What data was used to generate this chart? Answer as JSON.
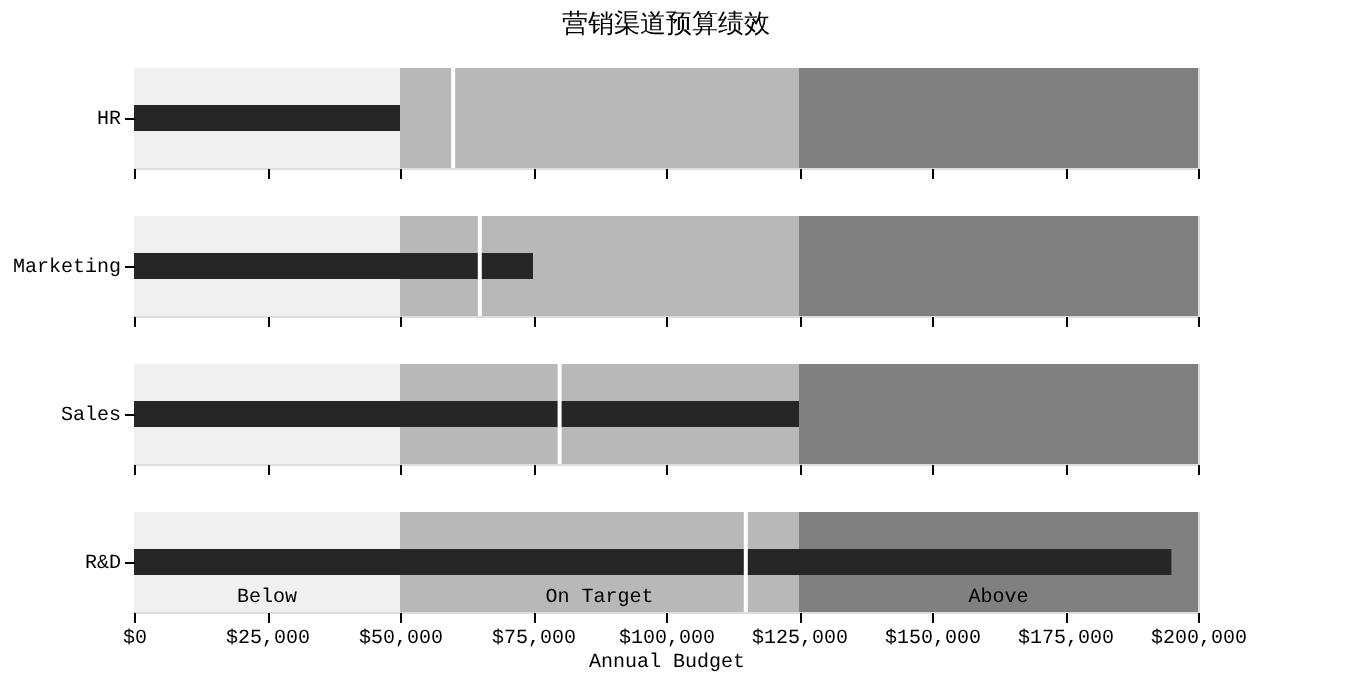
{
  "chart_data": [
    {
      "type": "bar",
      "orientation": "horizontal",
      "title": "营销渠道预算绩效",
      "categories": [
        "HR"
      ],
      "series": [
        {
          "color": "#262626",
          "values": [
            50000
          ]
        }
      ],
      "xlim": [
        0,
        200000
      ],
      "xticks": [
        {
          "value": 0,
          "label": null
        },
        {
          "value": 25000,
          "label": null
        },
        {
          "value": 50000,
          "label": null
        },
        {
          "value": 75000,
          "label": null
        },
        {
          "value": 100000,
          "label": null
        },
        {
          "value": 125000,
          "label": null
        },
        {
          "value": 150000,
          "label": null
        },
        {
          "value": 175000,
          "label": null
        },
        {
          "value": 200000,
          "label": null
        }
      ],
      "bands": [
        {
          "axis": "x",
          "from": 0,
          "to": 50000,
          "label": null,
          "color": "#f0f0f0"
        },
        {
          "axis": "x",
          "from": 50000,
          "to": 125000,
          "label": null,
          "color": "#b8b8b8"
        },
        {
          "axis": "x",
          "from": 125000,
          "to": 200000,
          "label": null,
          "color": "#808080"
        }
      ],
      "ref_lines": [
        {
          "axis": "x",
          "value": 60000,
          "label": null,
          "color": "#ffffff"
        }
      ],
      "tick_labels": "y"
    },
    {
      "type": "bar",
      "orientation": "horizontal",
      "categories": [
        "Marketing"
      ],
      "series": [
        {
          "color": "#262626",
          "values": [
            75000
          ]
        }
      ],
      "xlim": [
        0,
        200000
      ],
      "xticks": [
        {
          "value": 0,
          "label": null
        },
        {
          "value": 25000,
          "label": null
        },
        {
          "value": 50000,
          "label": null
        },
        {
          "value": 75000,
          "label": null
        },
        {
          "value": 100000,
          "label": null
        },
        {
          "value": 125000,
          "label": null
        },
        {
          "value": 150000,
          "label": null
        },
        {
          "value": 175000,
          "label": null
        },
        {
          "value": 200000,
          "label": null
        }
      ],
      "bands": [
        {
          "axis": "x",
          "from": 0,
          "to": 50000,
          "label": null,
          "color": "#f0f0f0"
        },
        {
          "axis": "x",
          "from": 50000,
          "to": 125000,
          "label": null,
          "color": "#b8b8b8"
        },
        {
          "axis": "x",
          "from": 125000,
          "to": 200000,
          "label": null,
          "color": "#808080"
        }
      ],
      "ref_lines": [
        {
          "axis": "x",
          "value": 65000,
          "label": null,
          "color": "#ffffff"
        }
      ],
      "tick_labels": "y"
    },
    {
      "type": "bar",
      "orientation": "horizontal",
      "categories": [
        "Sales"
      ],
      "series": [
        {
          "color": "#262626",
          "values": [
            125000
          ]
        }
      ],
      "xlim": [
        0,
        200000
      ],
      "xticks": [
        {
          "value": 0,
          "label": null
        },
        {
          "value": 25000,
          "label": null
        },
        {
          "value": 50000,
          "label": null
        },
        {
          "value": 75000,
          "label": null
        },
        {
          "value": 100000,
          "label": null
        },
        {
          "value": 125000,
          "label": null
        },
        {
          "value": 150000,
          "label": null
        },
        {
          "value": 175000,
          "label": null
        },
        {
          "value": 200000,
          "label": null
        }
      ],
      "bands": [
        {
          "axis": "x",
          "from": 0,
          "to": 50000,
          "label": null,
          "color": "#f0f0f0"
        },
        {
          "axis": "x",
          "from": 50000,
          "to": 125000,
          "label": null,
          "color": "#b8b8b8"
        },
        {
          "axis": "x",
          "from": 125000,
          "to": 200000,
          "label": null,
          "color": "#808080"
        }
      ],
      "ref_lines": [
        {
          "axis": "x",
          "value": 80000,
          "label": null,
          "color": "#ffffff"
        }
      ],
      "tick_labels": "y"
    },
    {
      "type": "bar",
      "orientation": "horizontal",
      "categories": [
        "R&D"
      ],
      "series": [
        {
          "color": "#262626",
          "values": [
            195000
          ]
        }
      ],
      "xlim": [
        0,
        200000
      ],
      "xticks": [
        {
          "value": 0,
          "label": "$0"
        },
        {
          "value": 25000,
          "label": "$25,000"
        },
        {
          "value": 50000,
          "label": "$50,000"
        },
        {
          "value": 75000,
          "label": "$75,000"
        },
        {
          "value": 100000,
          "label": "$100,000"
        },
        {
          "value": 125000,
          "label": "$125,000"
        },
        {
          "value": 150000,
          "label": "$150,000"
        },
        {
          "value": 175000,
          "label": "$175,000"
        },
        {
          "value": 200000,
          "label": "$200,000"
        }
      ],
      "bands": [
        {
          "axis": "x",
          "from": 0,
          "to": 50000,
          "label": "Below",
          "color": "#f0f0f0"
        },
        {
          "axis": "x",
          "from": 50000,
          "to": 125000,
          "label": "On Target",
          "color": "#b8b8b8"
        },
        {
          "axis": "x",
          "from": 125000,
          "to": 200000,
          "label": "Above",
          "color": "#808080"
        }
      ],
      "ref_lines": [
        {
          "axis": "x",
          "value": 115000,
          "label": null,
          "color": "#ffffff"
        }
      ],
      "xlabel": "Annual Budget"
    }
  ]
}
